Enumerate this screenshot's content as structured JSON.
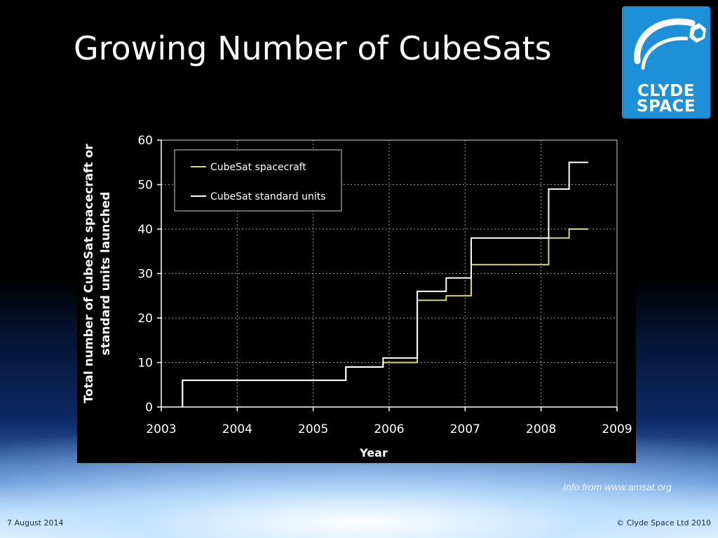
{
  "slide": {
    "title": "Growing Number of CubeSats",
    "logo": {
      "line1": "CLYDE",
      "line2": "SPACE",
      "color": "#1e90d8"
    },
    "source_note": "Info from www.amsat.org",
    "footer_date": "7 August 2014",
    "footer_copyright": "© Clyde Space Ltd 2010"
  },
  "chart_data": {
    "type": "line",
    "step": true,
    "xlabel": "Year",
    "ylabel_lines": [
      "Total number of CubeSat spacecraft or",
      "standard units launched"
    ],
    "xlim": [
      2003,
      2009
    ],
    "ylim": [
      0,
      60
    ],
    "xticks": [
      2003,
      2004,
      2005,
      2006,
      2007,
      2008,
      2009
    ],
    "yticks": [
      0,
      10,
      20,
      30,
      40,
      50,
      60
    ],
    "grid": true,
    "legend_position": "top-left",
    "series": [
      {
        "name": "CubeSat spacecraft",
        "color": "#d9d96a",
        "points": [
          [
            2003.28,
            0
          ],
          [
            2003.28,
            6
          ],
          [
            2005.43,
            6
          ],
          [
            2005.43,
            9
          ],
          [
            2005.92,
            9
          ],
          [
            2005.92,
            10
          ],
          [
            2006.37,
            10
          ],
          [
            2006.37,
            24
          ],
          [
            2006.75,
            24
          ],
          [
            2006.75,
            25
          ],
          [
            2007.08,
            25
          ],
          [
            2007.08,
            32
          ],
          [
            2008.1,
            32
          ],
          [
            2008.1,
            38
          ],
          [
            2008.37,
            38
          ],
          [
            2008.37,
            40
          ],
          [
            2008.62,
            40
          ]
        ]
      },
      {
        "name": "CubeSat standard units",
        "color": "#ffffff",
        "points": [
          [
            2003.28,
            0
          ],
          [
            2003.28,
            6
          ],
          [
            2005.43,
            6
          ],
          [
            2005.43,
            9
          ],
          [
            2005.92,
            9
          ],
          [
            2005.92,
            11
          ],
          [
            2006.37,
            11
          ],
          [
            2006.37,
            26
          ],
          [
            2006.75,
            26
          ],
          [
            2006.75,
            29
          ],
          [
            2007.08,
            29
          ],
          [
            2007.08,
            38
          ],
          [
            2008.1,
            38
          ],
          [
            2008.1,
            49
          ],
          [
            2008.37,
            49
          ],
          [
            2008.37,
            55
          ],
          [
            2008.62,
            55
          ]
        ]
      }
    ]
  }
}
